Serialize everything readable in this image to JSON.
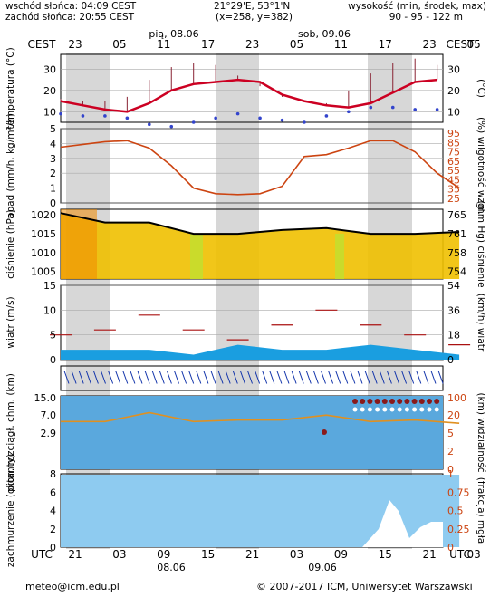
{
  "header": {
    "sunrise": "wschód słońca: 04:09 CEST",
    "sunset": "zachód słońca: 20:55 CEST",
    "coords": "21°29'E, 53°1'N",
    "grid": "(x=258, y=382)",
    "elev_title": "wysokość (min, środek, max)",
    "elev_values": "90 - 95 - 122 m"
  },
  "top_axis": {
    "tz": "CEST",
    "hours": [
      "23",
      "05",
      "11",
      "17",
      "23",
      "05",
      "11",
      "17",
      "23",
      "05"
    ],
    "days": [
      "pią, 08.06",
      "sob, 09.06"
    ]
  },
  "bottom_axis": {
    "tz": "UTC",
    "hours": [
      "21",
      "03",
      "09",
      "15",
      "21",
      "03",
      "09",
      "15",
      "21",
      "03"
    ],
    "dates": [
      "08.06",
      "09.06"
    ]
  },
  "footer": {
    "email": "meteo@icm.edu.pl",
    "copyright": "© 2007-2017 ICM, Uniwersytet Warszawski"
  },
  "colors": {
    "night_band": "#d0d0d0",
    "curve_red": "#cc0022",
    "precip_line": "#cc4411",
    "pressure_fill": "#f0c000",
    "wind_fill": "#1a9ee0",
    "cloud_fill": "#8ecbf0",
    "visibility_line": "#e09020"
  },
  "chart_data": [
    {
      "type": "line",
      "panel": "temperature",
      "ylabel_left": "temperatura (°C)",
      "ylabel_right": "(°C)",
      "yticks": [
        10,
        20,
        30
      ],
      "ylim": [
        5,
        37
      ],
      "x_hours_cest": [
        0,
        3,
        6,
        9,
        12,
        15,
        18,
        21,
        24,
        27,
        30,
        33,
        36,
        39,
        42,
        45,
        48,
        51
      ],
      "series": [
        {
          "values": [
            15,
            13,
            11,
            10,
            14,
            20,
            23,
            24,
            25,
            24,
            18,
            15,
            13,
            12,
            14,
            19,
            24,
            25
          ]
        },
        {
          "values": [
            9,
            8,
            8,
            7,
            4,
            3,
            5,
            7,
            9,
            7,
            6,
            5,
            8,
            10,
            12,
            12,
            11,
            11
          ]
        },
        {
          "values": [
            16,
            15,
            15,
            17,
            25,
            31,
            33,
            32,
            27,
            22,
            17,
            15,
            14,
            20,
            28,
            33,
            35,
            32
          ]
        }
      ]
    },
    {
      "type": "line",
      "panel": "precipitation_humidity",
      "ylabel_left": "opad (mm/h, kg/m²/h)",
      "ylabel_right": "(%) wilgotność wzgl.",
      "yticks_left": [
        0,
        1,
        2,
        3,
        4,
        5
      ],
      "yticks_right": [
        25,
        35,
        45,
        55,
        65,
        75,
        85,
        95
      ],
      "x_hours_cest": [
        0,
        3,
        6,
        9,
        12,
        15,
        18,
        21,
        24,
        27,
        30,
        33,
        36,
        39,
        42,
        45,
        48,
        51,
        54
      ],
      "series": [
        {
          "values": [
            80,
            83,
            86,
            87,
            79,
            60,
            36,
            30,
            29,
            30,
            38,
            70,
            72,
            79,
            87,
            87,
            75,
            52,
            36
          ]
        }
      ]
    },
    {
      "type": "area",
      "panel": "pressure",
      "ylabel_left": "ciśnienie (hPa)",
      "ylabel_right": "(mm Hg) ciśnienie",
      "yticks_left": [
        1005,
        1010,
        1015,
        1020
      ],
      "yticks_right": [
        754,
        758,
        761,
        765
      ],
      "x_hours_cest": [
        0,
        6,
        12,
        18,
        24,
        30,
        36,
        42,
        48,
        54
      ],
      "series": [
        {
          "values": [
            1020.5,
            1018,
            1018,
            1015,
            1015,
            1016,
            1016.5,
            1015,
            1015,
            1015.5
          ]
        }
      ]
    },
    {
      "type": "area",
      "panel": "wind",
      "ylabel_left": "wiatr (m/s)",
      "ylabel_right": "(km/h) wiatr",
      "yticks_left": [
        0,
        5,
        10,
        15
      ],
      "yticks_right": [
        0,
        18,
        36,
        54
      ],
      "x_hours_cest": [
        0,
        6,
        12,
        18,
        24,
        30,
        36,
        42,
        48,
        54
      ],
      "series": [
        {
          "values": [
            2,
            2,
            2,
            1,
            3,
            2,
            2,
            3,
            2,
            1
          ]
        },
        {
          "values": [
            5,
            6,
            9,
            6,
            4,
            7,
            10,
            7,
            5,
            3
          ]
        }
      ]
    },
    {
      "type": "line",
      "panel": "visibility",
      "ylabel_left": "pion. rozciągł. chm. (km)",
      "ylabel_right": "(km) widzialność",
      "yticks_left": [
        2.9,
        7.0,
        15.0
      ],
      "yticks_right": [
        0,
        2,
        5,
        20,
        100
      ],
      "x_hours_cest": [
        0,
        6,
        12,
        18,
        24,
        30,
        36,
        42,
        48,
        54
      ],
      "series": [
        {
          "values": [
            20,
            20,
            35,
            20,
            22,
            22,
            30,
            20,
            22,
            18
          ]
        }
      ]
    },
    {
      "type": "area",
      "panel": "cloud_cover",
      "ylabel_left": "zachmurzenie (oktanty)",
      "ylabel_right": "(frakcja) mgła",
      "yticks_left": [
        0,
        2,
        4,
        6,
        8
      ],
      "yticks_right": [
        0,
        0.25,
        0.5,
        0.75,
        1
      ],
      "x_hours_cest": [
        0,
        6,
        12,
        18,
        24,
        30,
        36,
        42,
        48,
        51,
        54
      ],
      "series": [
        {
          "values": [
            7.9,
            7.9,
            7.9,
            7.9,
            7.9,
            7.9,
            7.9,
            7.9,
            7.9,
            7.9,
            7.9
          ]
        },
        {
          "values": [
            0,
            0,
            0,
            0,
            0,
            0,
            0,
            0,
            0.5,
            0.1,
            0.2
          ]
        }
      ]
    }
  ]
}
